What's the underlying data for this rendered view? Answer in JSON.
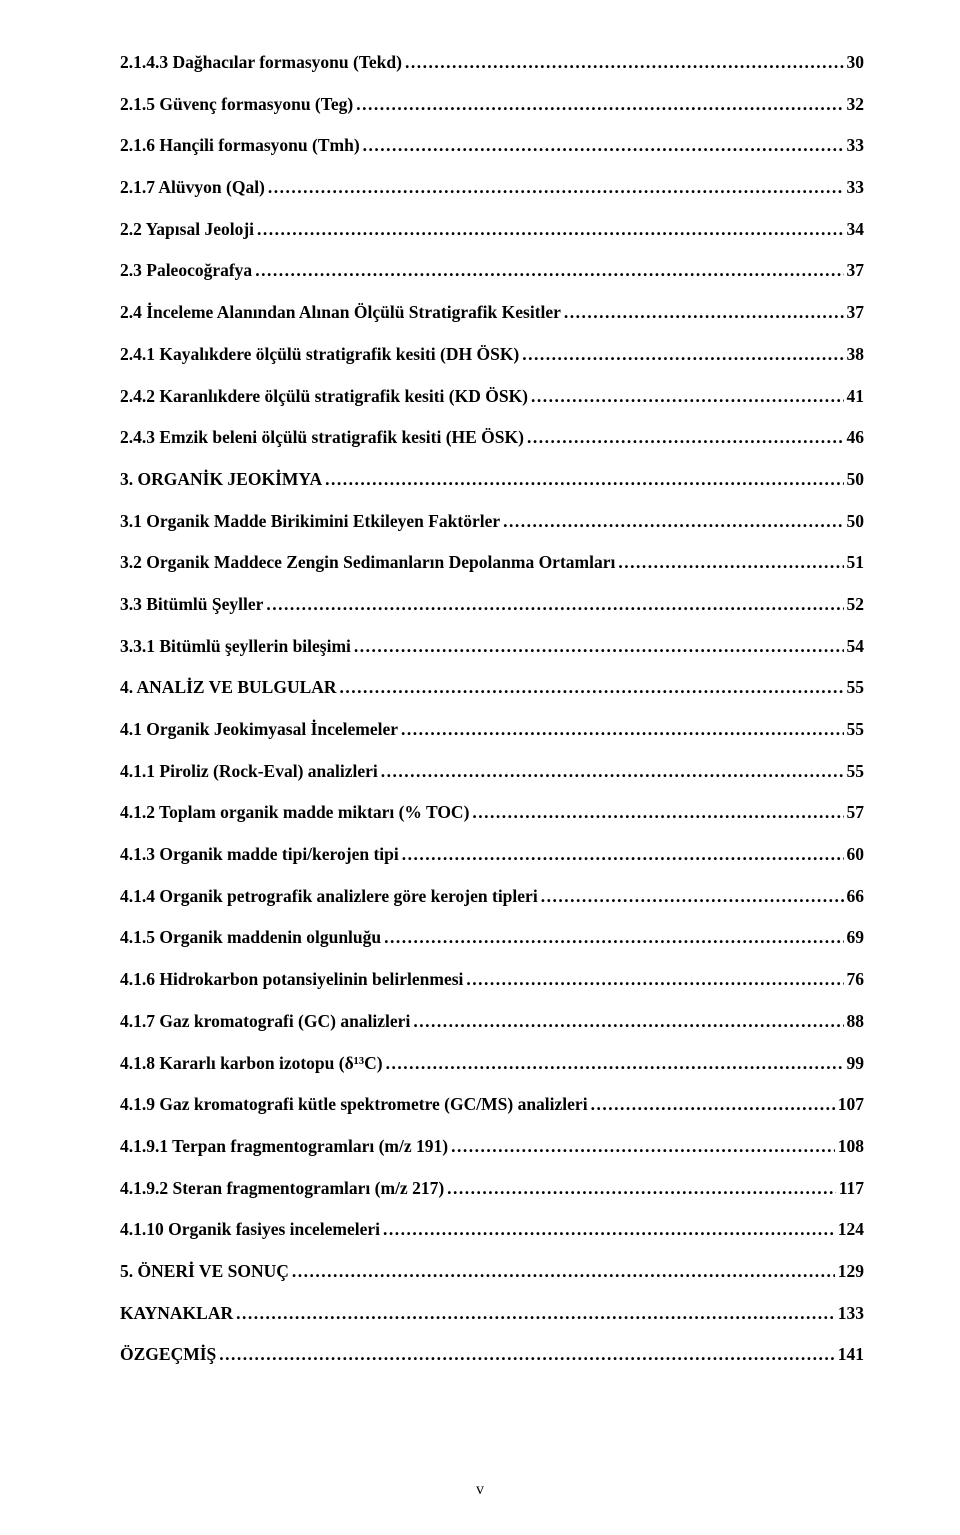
{
  "toc": {
    "entries": [
      {
        "label": "2.1.4.3 Dağhacılar formasyonu (Tekd)",
        "page": "30"
      },
      {
        "label": "2.1.5 Güvenç formasyonu (Teg)",
        "page": "32"
      },
      {
        "label": "2.1.6 Hançili formasyonu (Tmh)",
        "page": "33"
      },
      {
        "label": "2.1.7 Alüvyon (Qal)",
        "page": "33"
      },
      {
        "label": "2.2 Yapısal Jeoloji",
        "page": "34"
      },
      {
        "label": "2.3 Paleocoğrafya",
        "page": "37"
      },
      {
        "label": "2.4 İnceleme Alanından Alınan Ölçülü Stratigrafik Kesitler",
        "page": "37"
      },
      {
        "label": "2.4.1 Kayalıkdere ölçülü stratigrafik kesiti (DH ÖSK)",
        "page": "38"
      },
      {
        "label": "2.4.2 Karanlıkdere ölçülü stratigrafik kesiti (KD ÖSK)",
        "page": "41"
      },
      {
        "label": "2.4.3 Emzik beleni ölçülü stratigrafik kesiti (HE ÖSK)",
        "page": "46"
      },
      {
        "label": "3. ORGANİK JEOKİMYA",
        "page": "50"
      },
      {
        "label": "3.1 Organik Madde Birikimini Etkileyen Faktörler",
        "page": "50"
      },
      {
        "label": "3.2 Organik Maddece Zengin Sedimanların Depolanma Ortamları",
        "page": "51"
      },
      {
        "label": "3.3 Bitümlü Şeyller",
        "page": "52"
      },
      {
        "label": "3.3.1 Bitümlü şeyllerin bileşimi",
        "page": "54"
      },
      {
        "label": "4. ANALİZ VE BULGULAR",
        "page": "55"
      },
      {
        "label": "4.1 Organik Jeokimyasal İncelemeler",
        "page": "55"
      },
      {
        "label": "4.1.1 Piroliz (Rock-Eval) analizleri",
        "page": "55"
      },
      {
        "label": "4.1.2 Toplam organik madde miktarı (% TOC)",
        "page": "57"
      },
      {
        "label": "4.1.3 Organik madde tipi/kerojen tipi",
        "page": "60"
      },
      {
        "label": "4.1.4 Organik petrografik analizlere göre kerojen tipleri",
        "page": "66"
      },
      {
        "label": "4.1.5 Organik maddenin olgunluğu",
        "page": "69"
      },
      {
        "label": "4.1.6 Hidrokarbon potansiyelinin belirlenmesi",
        "page": "76"
      },
      {
        "label": "4.1.7 Gaz kromatografi (GC) analizleri",
        "page": "88"
      },
      {
        "label": "4.1.8 Kararlı karbon izotopu (δ¹³C)",
        "page": "99"
      },
      {
        "label": "4.1.9 Gaz kromatografi kütle spektrometre (GC/MS) analizleri",
        "page": "107"
      },
      {
        "label": "4.1.9.1 Terpan fragmentogramları (m/z 191)",
        "page": "108"
      },
      {
        "label": "4.1.9.2 Steran fragmentogramları (m/z 217)",
        "page": "117"
      },
      {
        "label": "4.1.10 Organik fasiyes incelemeleri",
        "page": "124"
      },
      {
        "label": "5. ÖNERİ VE SONUÇ",
        "page": "129"
      },
      {
        "label": "KAYNAKLAR",
        "page": "133"
      },
      {
        "label": "ÖZGEÇMİŞ",
        "page": "141"
      }
    ]
  },
  "page_number": "v"
}
